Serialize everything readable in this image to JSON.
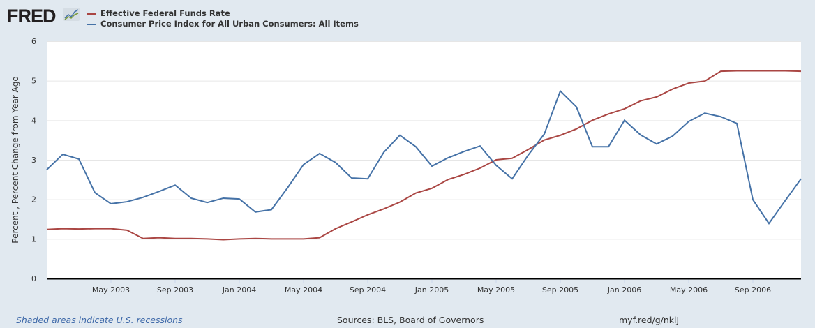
{
  "logo": "FRED",
  "colors": {
    "fedfunds": "#aa4643",
    "cpi": "#4572a7",
    "background": "#e1e9f0"
  },
  "footer": {
    "recessions_note": "Shaded areas indicate U.S. recessions",
    "sources": "Sources: BLS, Board of Governors",
    "link": "myf.red/g/nklJ"
  },
  "chart_data": {
    "type": "line",
    "ylabel": "Percent , Percent Change from Year Ago",
    "ylim": [
      0,
      6
    ],
    "yticks": [
      "0",
      "1",
      "2",
      "3",
      "4",
      "5",
      "6"
    ],
    "grid": true,
    "legend": "top-left",
    "xticks": [
      {
        "month": "2003-05",
        "label": "May 2003"
      },
      {
        "month": "2003-09",
        "label": "Sep 2003"
      },
      {
        "month": "2004-01",
        "label": "Jan 2004"
      },
      {
        "month": "2004-05",
        "label": "May 2004"
      },
      {
        "month": "2004-09",
        "label": "Sep 2004"
      },
      {
        "month": "2005-01",
        "label": "Jan 2005"
      },
      {
        "month": "2005-05",
        "label": "May 2005"
      },
      {
        "month": "2005-09",
        "label": "Sep 2005"
      },
      {
        "month": "2006-01",
        "label": "Jan 2006"
      },
      {
        "month": "2006-05",
        "label": "May 2006"
      },
      {
        "month": "2006-09",
        "label": "Sep 2006"
      }
    ],
    "x": [
      "2003-01",
      "2003-02",
      "2003-03",
      "2003-04",
      "2003-05",
      "2003-06",
      "2003-07",
      "2003-08",
      "2003-09",
      "2003-10",
      "2003-11",
      "2003-12",
      "2004-01",
      "2004-02",
      "2004-03",
      "2004-04",
      "2004-05",
      "2004-06",
      "2004-07",
      "2004-08",
      "2004-09",
      "2004-10",
      "2004-11",
      "2004-12",
      "2005-01",
      "2005-02",
      "2005-03",
      "2005-04",
      "2005-05",
      "2005-06",
      "2005-07",
      "2005-08",
      "2005-09",
      "2005-10",
      "2005-11",
      "2005-12",
      "2006-01",
      "2006-02",
      "2006-03",
      "2006-04",
      "2006-05",
      "2006-06",
      "2006-07",
      "2006-08",
      "2006-09",
      "2006-10",
      "2006-11",
      "2006-12"
    ],
    "series": [
      {
        "name": "Effective Federal Funds Rate",
        "color": "#aa4643",
        "values": [
          1.24,
          1.26,
          1.25,
          1.26,
          1.26,
          1.22,
          1.01,
          1.03,
          1.01,
          1.01,
          1.0,
          0.98,
          1.0,
          1.01,
          1.0,
          1.0,
          1.0,
          1.03,
          1.26,
          1.43,
          1.61,
          1.76,
          1.93,
          2.16,
          2.28,
          2.5,
          2.63,
          2.79,
          3.0,
          3.04,
          3.26,
          3.5,
          3.62,
          3.78,
          4.0,
          4.16,
          4.29,
          4.49,
          4.59,
          4.79,
          4.94,
          4.99,
          5.24,
          5.25,
          5.25,
          5.25,
          5.25,
          5.24
        ]
      },
      {
        "name": "Consumer Price Index for All Urban Consumers: All Items",
        "color": "#4572a7",
        "values": [
          2.75,
          3.14,
          3.02,
          2.17,
          1.89,
          1.94,
          2.05,
          2.2,
          2.36,
          2.03,
          1.92,
          2.03,
          2.01,
          1.68,
          1.74,
          2.29,
          2.88,
          3.16,
          2.93,
          2.54,
          2.52,
          3.19,
          3.62,
          3.33,
          2.84,
          3.05,
          3.21,
          3.35,
          2.86,
          2.52,
          3.12,
          3.65,
          4.74,
          4.34,
          3.33,
          3.33,
          4.0,
          3.63,
          3.4,
          3.6,
          3.97,
          4.18,
          4.09,
          3.92,
          1.99,
          1.39,
          1.96,
          2.52
        ]
      }
    ]
  }
}
